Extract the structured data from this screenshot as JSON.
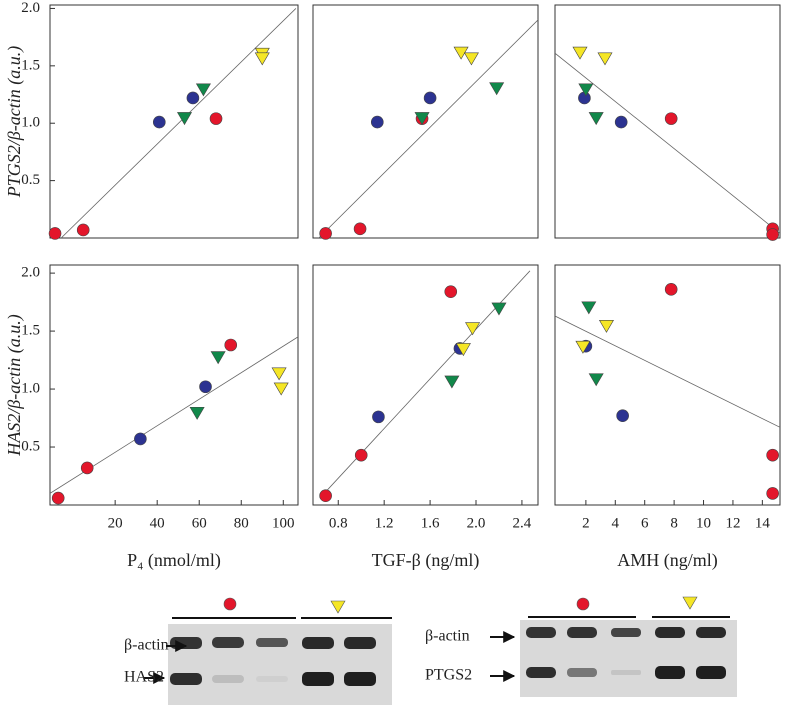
{
  "chart_data": [
    {
      "type": "scatter",
      "y_label": "PTGS2/β-actin (a.u.)",
      "xlim": [
        -11,
        107
      ],
      "ylim": [
        0,
        2.03
      ],
      "yticks": [
        0.5,
        {
          "value": 1,
          "label": "1.0"
        },
        1.5,
        {
          "value": 2,
          "label": "2.0"
        }
      ],
      "series": [
        {
          "color": "#e3162b",
          "marker": "circle",
          "x": [
            -8.6,
            4.8,
            68
          ],
          "y": [
            0.04,
            0.07,
            1.04
          ]
        },
        {
          "color": "#2c3391",
          "marker": "circle",
          "x": [
            41,
            57
          ],
          "y": [
            1.01,
            1.22
          ]
        },
        {
          "color": "#11884a",
          "marker": "triangle-down",
          "x": [
            53,
            62
          ],
          "y": [
            1.05,
            1.3
          ]
        },
        {
          "color": "#f5e626",
          "marker": "triangle-down",
          "x": [
            90,
            90
          ],
          "y": [
            1.61,
            1.57
          ]
        }
      ],
      "trendline": {
        "x": [
          -5.7,
          106
        ],
        "y": [
          0,
          2.0
        ]
      }
    },
    {
      "type": "scatter",
      "xlim": [
        0.58,
        2.54
      ],
      "ylim": [
        0,
        2.03
      ],
      "series": [
        {
          "color": "#e3162b",
          "marker": "circle",
          "x": [
            0.69,
            0.99,
            1.53
          ],
          "y": [
            0.04,
            0.08,
            1.04
          ]
        },
        {
          "color": "#2c3391",
          "marker": "circle",
          "x": [
            1.14,
            1.6
          ],
          "y": [
            1.01,
            1.22
          ]
        },
        {
          "color": "#11884a",
          "marker": "triangle-down",
          "x": [
            1.53,
            2.18
          ],
          "y": [
            1.05,
            1.31
          ]
        },
        {
          "color": "#f5e626",
          "marker": "triangle-down",
          "x": [
            1.87,
            1.96
          ],
          "y": [
            1.62,
            1.57
          ]
        }
      ],
      "trendline": {
        "x": [
          0.63,
          2.54
        ],
        "y": [
          0,
          1.9
        ]
      }
    },
    {
      "type": "scatter",
      "xlim": [
        -0.1,
        15.2
      ],
      "ylim": [
        0,
        2.03
      ],
      "series": [
        {
          "color": "#e3162b",
          "marker": "circle",
          "x": [
            7.8,
            14.7,
            14.7
          ],
          "y": [
            1.04,
            0.08,
            0.03
          ]
        },
        {
          "color": "#2c3391",
          "marker": "circle",
          "x": [
            1.9,
            4.4
          ],
          "y": [
            1.22,
            1.01
          ]
        },
        {
          "color": "#11884a",
          "marker": "triangle-down",
          "x": [
            2.0,
            2.7
          ],
          "y": [
            1.3,
            1.05
          ]
        },
        {
          "color": "#f5e626",
          "marker": "triangle-down",
          "x": [
            1.6,
            3.3
          ],
          "y": [
            1.62,
            1.57
          ]
        }
      ],
      "trendline": {
        "x": [
          -0.1,
          15.2
        ],
        "y": [
          1.61,
          0.04
        ]
      }
    },
    {
      "type": "scatter",
      "y_label": "HAS2/β-actin (a.u.)",
      "x_label": "P₄ (nmol/ml)",
      "xlim": [
        -11,
        107
      ],
      "ylim": [
        0,
        2.07
      ],
      "xticks": [
        20,
        40,
        60,
        80,
        100
      ],
      "yticks": [
        0.5,
        {
          "value": 1,
          "label": "1.0"
        },
        1.5,
        {
          "value": 2,
          "label": "2.0"
        }
      ],
      "series": [
        {
          "color": "#e3162b",
          "marker": "circle",
          "x": [
            -7.1,
            6.7,
            75
          ],
          "y": [
            0.06,
            0.32,
            1.38
          ]
        },
        {
          "color": "#2c3391",
          "marker": "circle",
          "x": [
            32,
            63
          ],
          "y": [
            0.57,
            1.02
          ]
        },
        {
          "color": "#11884a",
          "marker": "triangle-down",
          "x": [
            59,
            69
          ],
          "y": [
            0.8,
            1.28
          ]
        },
        {
          "color": "#f5e626",
          "marker": "triangle-down",
          "x": [
            98,
            99
          ],
          "y": [
            1.14,
            1.01
          ]
        }
      ],
      "trendline": {
        "x": [
          -11,
          107
        ],
        "y": [
          0.1,
          1.45
        ]
      }
    },
    {
      "type": "scatter",
      "x_label": "TGF-β (ng/ml)",
      "xlim": [
        0.58,
        2.54
      ],
      "ylim": [
        0,
        2.07
      ],
      "xticks": [
        0.8,
        1.2,
        1.6,
        {
          "value": 2,
          "label": "2.0"
        },
        2.4
      ],
      "series": [
        {
          "color": "#e3162b",
          "marker": "circle",
          "x": [
            0.69,
            1.0,
            1.78
          ],
          "y": [
            0.08,
            0.43,
            1.84
          ]
        },
        {
          "color": "#2c3391",
          "marker": "circle",
          "x": [
            1.15,
            1.86
          ],
          "y": [
            0.76,
            1.35
          ]
        },
        {
          "color": "#11884a",
          "marker": "triangle-down",
          "x": [
            1.79,
            2.2
          ],
          "y": [
            1.07,
            1.7
          ]
        },
        {
          "color": "#f5e626",
          "marker": "triangle-down",
          "x": [
            1.89,
            1.97
          ],
          "y": [
            1.35,
            1.53
          ]
        }
      ],
      "trendline": {
        "x": [
          0.64,
          2.47
        ],
        "y": [
          0.06,
          2.02
        ]
      }
    },
    {
      "type": "scatter",
      "x_label": "AMH (ng/ml)",
      "xlim": [
        -0.1,
        15.2
      ],
      "ylim": [
        0,
        2.07
      ],
      "xticks": [
        2,
        4,
        6,
        8,
        10,
        12,
        14
      ],
      "series": [
        {
          "color": "#e3162b",
          "marker": "circle",
          "x": [
            7.8,
            14.7,
            14.7
          ],
          "y": [
            1.86,
            0.43,
            0.1
          ]
        },
        {
          "color": "#2c3391",
          "marker": "circle",
          "x": [
            2.0,
            4.5
          ],
          "y": [
            1.37,
            0.77
          ]
        },
        {
          "color": "#11884a",
          "marker": "triangle-down",
          "x": [
            2.2,
            2.7
          ],
          "y": [
            1.71,
            1.09
          ]
        },
        {
          "color": "#f5e626",
          "marker": "triangle-down",
          "x": [
            1.8,
            3.4
          ],
          "y": [
            1.37,
            1.55
          ]
        }
      ],
      "trendline": {
        "x": [
          -0.1,
          15.2
        ],
        "y": [
          1.63,
          0.67
        ]
      }
    }
  ],
  "gels": [
    {
      "rows": [
        "β-actin",
        "HAS2"
      ]
    },
    {
      "rows": [
        "β-actin",
        "PTGS2"
      ]
    }
  ]
}
